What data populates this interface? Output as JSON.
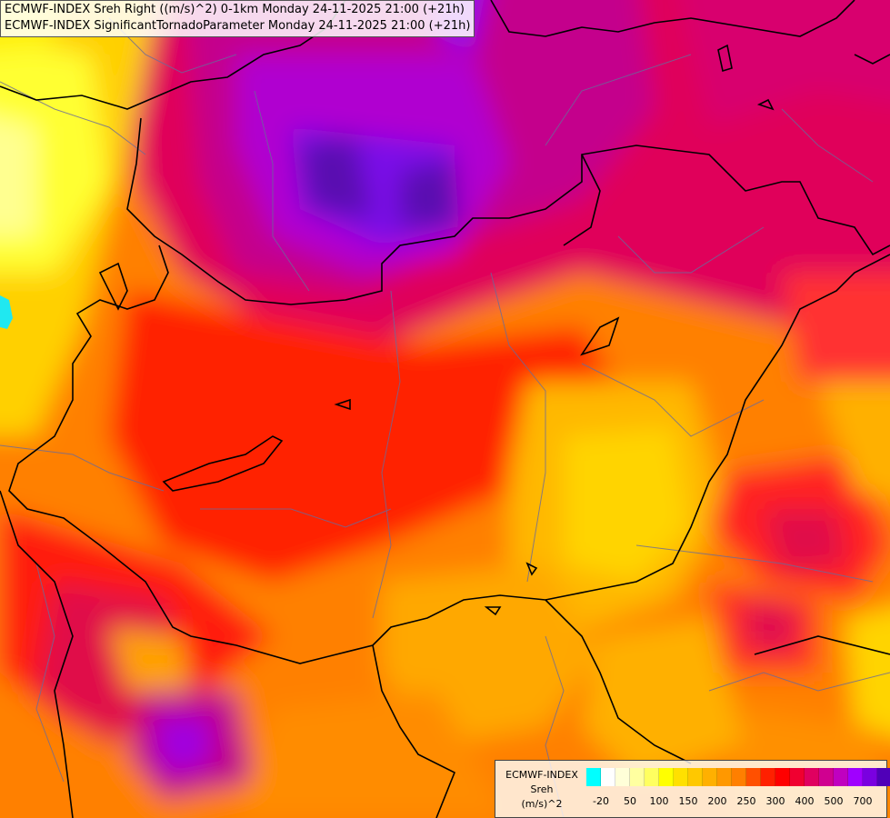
{
  "titles": {
    "line1": "ECMWF-INDEX Sreh Right ((m/s)^2) 0-1km Monday 24-11-2025 21:00 (+21h)",
    "line2": "ECMWF-INDEX SignificantTornadoParameter Monday 24-11-2025 21:00 (+21h)"
  },
  "legend": {
    "line1": "ECMWF-INDEX",
    "line2": "Sreh",
    "line3": "(m/s)^2",
    "colors": [
      "#00ffff",
      "#ffffff",
      "#ffffd8",
      "#ffffa0",
      "#ffff60",
      "#ffff00",
      "#ffe000",
      "#ffc800",
      "#ffb000",
      "#ff9800",
      "#ff7f00",
      "#ff5000",
      "#ff2000",
      "#ff0000",
      "#f00030",
      "#e00060",
      "#d00090",
      "#c000c0",
      "#a000ff",
      "#7a00e0",
      "#5000b8",
      "#2a0090",
      "#000080"
    ],
    "tick_labels": [
      "-20",
      "50",
      "100",
      "150",
      "200",
      "250",
      "300",
      "400",
      "500",
      "700"
    ]
  },
  "icons": {
    "map": "weather-field-map"
  }
}
